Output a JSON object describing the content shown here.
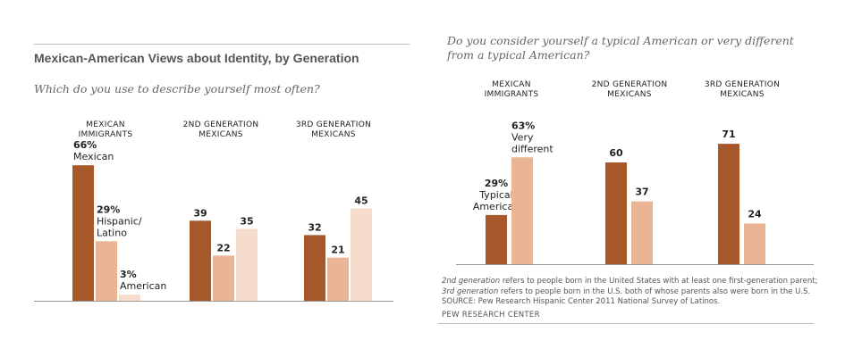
{
  "chart_data": [
    {
      "type": "bar",
      "title": "Mexican-American Views about Identity, by Generation",
      "subtitle": "Which do you use to describe yourself most often?",
      "categories": [
        "MEXICAN\nIMMIGRANTS",
        "2ND GENERATION\nMEXICANS",
        "3RD GENERATION\nMEXICANS"
      ],
      "series": [
        {
          "name": "Mexican",
          "values": [
            66,
            39,
            32
          ],
          "color": "#a6582a"
        },
        {
          "name": "Hispanic/\nLatino",
          "values": [
            29,
            22,
            21
          ],
          "color": "#e9b594"
        },
        {
          "name": "American",
          "values": [
            3,
            35,
            45
          ],
          "color": "#f6dccb"
        }
      ],
      "data_labels": [
        [
          "66%",
          "29%",
          "3%"
        ],
        [
          "39",
          "22",
          "35"
        ],
        [
          "32",
          "21",
          "45"
        ]
      ]
    },
    {
      "type": "bar",
      "title": "Do you consider yourself a typical American or very different from a typical American?",
      "categories": [
        "MEXICAN\nIMMIGRANTS",
        "2ND GENERATION\nMEXICANS",
        "3RD GENERATION\nMEXICANS"
      ],
      "series": [
        {
          "name": "Typical\nAmerican",
          "values": [
            29,
            60,
            71
          ],
          "color": "#a6582a"
        },
        {
          "name": "Very\ndifferent",
          "values": [
            63,
            37,
            24
          ],
          "color": "#e9b594"
        }
      ],
      "data_labels": [
        [
          "29%",
          "63%"
        ],
        [
          "60",
          "37"
        ],
        [
          "71",
          "24"
        ]
      ]
    }
  ],
  "notes": {
    "term1": "2nd generation",
    "text1": " refers to people born in the United States with at least one first-generation parent; ",
    "term2": "3rd generation",
    "text2": " refers to people born in the U.S. both of whose parents also were born in the U.S. SOURCE: Pew Research Hispanic Center 2011 National Survey of Latinos.",
    "source": "PEW RESEARCH CENTER"
  }
}
